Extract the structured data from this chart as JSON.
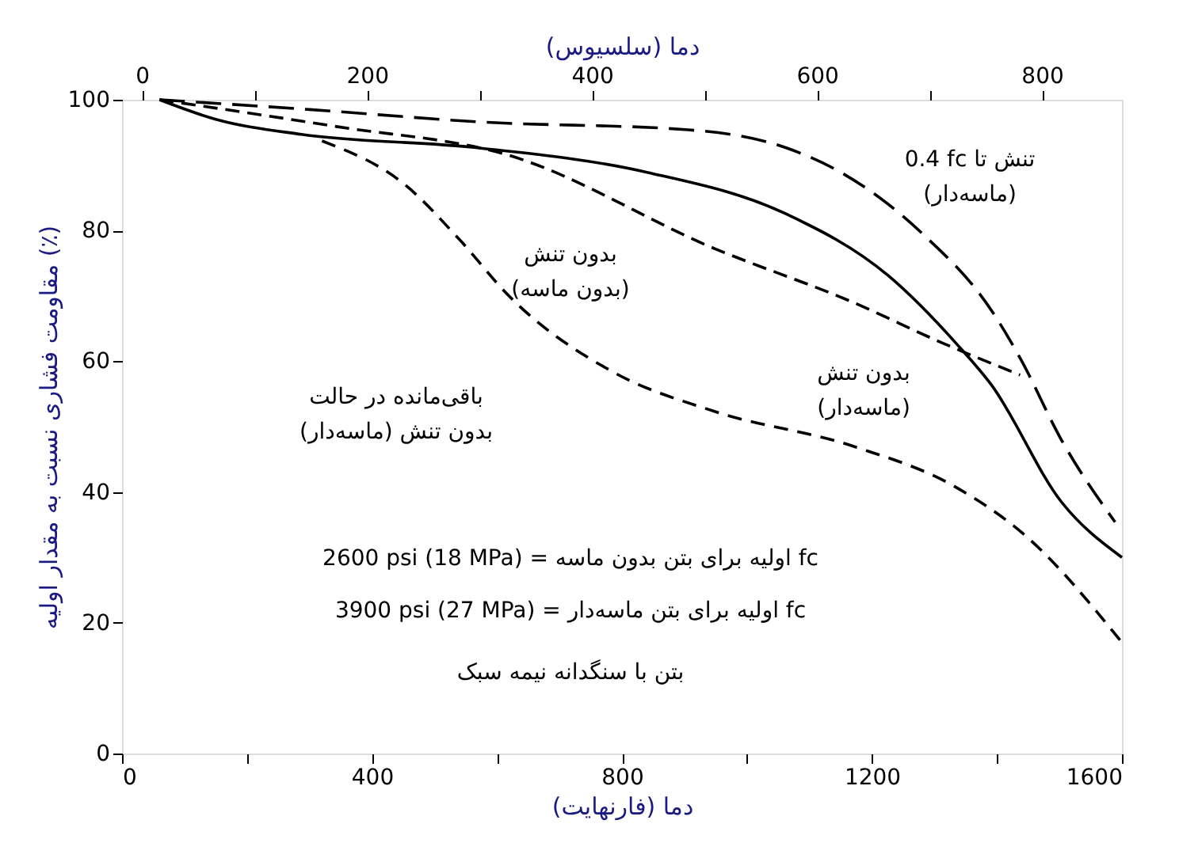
{
  "chart_data": {
    "type": "line",
    "xlabel": "دما (فارنهایت)",
    "x2label": "دما (سلسیوس)",
    "ylabel": "مقاومت فشاری نسبت به مقدار اولیه (٪)",
    "xlim": [
      0,
      1600
    ],
    "xticks": [
      0,
      {
        "value": 200,
        "label": null
      },
      400,
      {
        "value": 600,
        "label": null
      },
      800,
      {
        "value": 1000,
        "label": null
      },
      1200,
      {
        "value": 1400,
        "label": null
      },
      1600
    ],
    "x2lim": [
      -17.8,
      871.1
    ],
    "x2ticks": [
      0,
      {
        "value": 100,
        "label": null
      },
      200,
      {
        "value": 300,
        "label": null
      },
      400,
      {
        "value": 500,
        "label": null
      },
      600,
      {
        "value": 700,
        "label": null
      },
      800
    ],
    "ylim": [
      0,
      100
    ],
    "yticks": [
      0,
      20,
      40,
      60,
      80,
      100
    ],
    "grid": false,
    "marker": "none",
    "series": [
      {
        "color": "#000000",
        "line_style": "dashed",
        "x": [
          60,
          300,
          574,
          906,
          1061,
          1150,
          1282,
          1391,
          1437,
          1503,
          1589
        ],
        "values": [
          100,
          98.5,
          96.6,
          95.4,
          92.7,
          88.9,
          79.4,
          67.8,
          60.5,
          48,
          35.4
        ]
      },
      {
        "color": "#000000",
        "line_style": "dashed",
        "x": [
          60,
          343,
          619,
          949,
          1170,
          1315,
          1437
        ],
        "values": [
          100,
          95.9,
          91.5,
          77.2,
          69,
          62.7,
          57.9
        ]
      },
      {
        "color": "#000000",
        "line_style": "solid",
        "x": [
          60,
          150,
          287,
          563,
          840,
          1061,
          1226,
          1335,
          1391,
          1503,
          1600
        ],
        "values": [
          100,
          97,
          94.7,
          92.7,
          88.9,
          82.6,
          73.1,
          62.7,
          56.4,
          38.5,
          30
        ]
      },
      {
        "color": "#000000",
        "line_style": "dashed",
        "x": [
          320,
          454,
          541,
          619,
          785,
          949,
          1170,
          1335,
          1447,
          1600
        ],
        "values": [
          93.7,
          86.9,
          78.5,
          70,
          58.4,
          52.3,
          47,
          40.7,
          33.2,
          17
        ]
      }
    ],
    "annotations": [
      "0.4 fc تنش تا\n(ماسه‌دار)",
      "بدون تنش\n(بدون ماسه)",
      "بدون تنش\n(ماسه‌دار)",
      "باقی‌مانده در حالت\nبدون تنش (ماسه‌دار)",
      "2600 psi (18 MPa) = اولیه برای بتن بدون ماسه fc",
      "3900 psi (27 MPa) = اولیه برای بتن ماسه‌دار fc",
      "بتن با سنگدانه نیمه سبک"
    ]
  }
}
